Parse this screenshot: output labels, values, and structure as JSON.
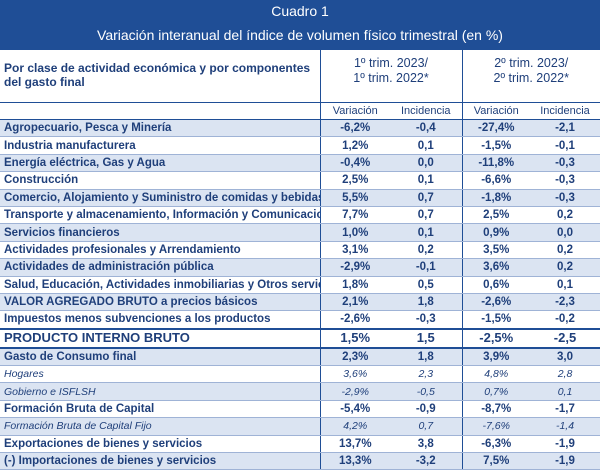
{
  "header": {
    "title": "Cuadro 1",
    "subtitle": "Variación interanual del índice de volumen físico trimestral (en %)"
  },
  "table": {
    "corner_label_line1": "Por clase de actividad económica y por componentes",
    "corner_label_line2": "del gasto final",
    "period1_line1": "1º trim. 2023/",
    "period1_line2": "1º trim. 2022*",
    "period2_line1": "2º trim. 2023/",
    "period2_line2": "2º trim. 2022*",
    "sub_headers": [
      "Variación",
      "Incidencia",
      "Variación",
      "Incidencia"
    ],
    "rows": [
      {
        "label": "Agropecuario, Pesca y Minería",
        "v1": "-6,2%",
        "i1": "-0,4",
        "v2": "-27,4%",
        "i2": "-2,1",
        "style": "shade bold"
      },
      {
        "label": "Industria manufacturera",
        "v1": "1,2%",
        "i1": "0,1",
        "v2": "-1,5%",
        "i2": "-0,1",
        "style": "bold"
      },
      {
        "label": "Energía eléctrica, Gas y Agua",
        "v1": "-0,4%",
        "i1": "0,0",
        "v2": "-11,8%",
        "i2": "-0,3",
        "style": "shade bold"
      },
      {
        "label": "Construcción",
        "v1": "2,5%",
        "i1": "0,1",
        "v2": "-6,6%",
        "i2": "-0,3",
        "style": "bold"
      },
      {
        "label": "Comercio,  Alojamiento y Suministro de comidas y bebidas",
        "v1": "5,5%",
        "i1": "0,7",
        "v2": "-1,8%",
        "i2": "-0,3",
        "style": "shade bold"
      },
      {
        "label": "Transporte y almacenamiento, Información y Comunicaciones",
        "v1": "7,7%",
        "i1": "0,7",
        "v2": "2,5%",
        "i2": "0,2",
        "style": "bold"
      },
      {
        "label": "Servicios financieros",
        "v1": "1,0%",
        "i1": "0,1",
        "v2": "0,9%",
        "i2": "0,0",
        "style": "shade bold"
      },
      {
        "label": "Actividades profesionales y Arrendamiento",
        "v1": "3,1%",
        "i1": "0,2",
        "v2": "3,5%",
        "i2": "0,2",
        "style": "bold"
      },
      {
        "label": "Actividades de administración pública",
        "v1": "-2,9%",
        "i1": "-0,1",
        "v2": "3,6%",
        "i2": "0,2",
        "style": "shade bold"
      },
      {
        "label": "Salud, Educación, Actividades inmobiliarias y Otros servicios",
        "v1": "1,8%",
        "i1": "0,5",
        "v2": "0,6%",
        "i2": "0,1",
        "style": "bold"
      },
      {
        "label": "VALOR AGREGADO BRUTO a precios básicos",
        "v1": "2,1%",
        "i1": "1,8",
        "v2": "-2,6%",
        "i2": "-2,3",
        "style": "shade bold"
      },
      {
        "label": "Impuestos menos subvenciones a los productos",
        "v1": "-2,6%",
        "i1": "-0,3",
        "v2": "-1,5%",
        "i2": "-0,2",
        "style": "bold"
      },
      {
        "label": "PRODUCTO INTERNO BRUTO",
        "v1": "1,5%",
        "i1": "1,5",
        "v2": "-2,5%",
        "i2": "-2,5",
        "style": "total"
      },
      {
        "label": "Gasto de Consumo final",
        "v1": "2,3%",
        "i1": "1,8",
        "v2": "3,9%",
        "i2": "3,0",
        "style": "shade bold"
      },
      {
        "label": "Hogares",
        "v1": "3,6%",
        "i1": "2,3",
        "v2": "4,8%",
        "i2": "2,8",
        "style": "italic"
      },
      {
        "label": "Gobierno e ISFLSH",
        "v1": "-2,9%",
        "i1": "-0,5",
        "v2": "0,7%",
        "i2": "0,1",
        "style": "shade italic"
      },
      {
        "label": "Formación Bruta de Capital",
        "v1": "-5,4%",
        "i1": "-0,9",
        "v2": "-8,7%",
        "i2": "-1,7",
        "style": "bold"
      },
      {
        "label": "Formación Bruta de Capital Fijo",
        "v1": "4,2%",
        "i1": "0,7",
        "v2": "-7,6%",
        "i2": "-1,4",
        "style": "shade italic"
      },
      {
        "label": "Exportaciones de bienes y servicios",
        "v1": "13,7%",
        "i1": "3,8",
        "v2": "-6,3%",
        "i2": "-1,9",
        "style": "bold"
      },
      {
        "label": "(-) Importaciones de bienes y servicios",
        "v1": "13,3%",
        "i1": "-3,2",
        "v2": "7,5%",
        "i2": "-1,9",
        "style": "shade bold"
      }
    ]
  }
}
